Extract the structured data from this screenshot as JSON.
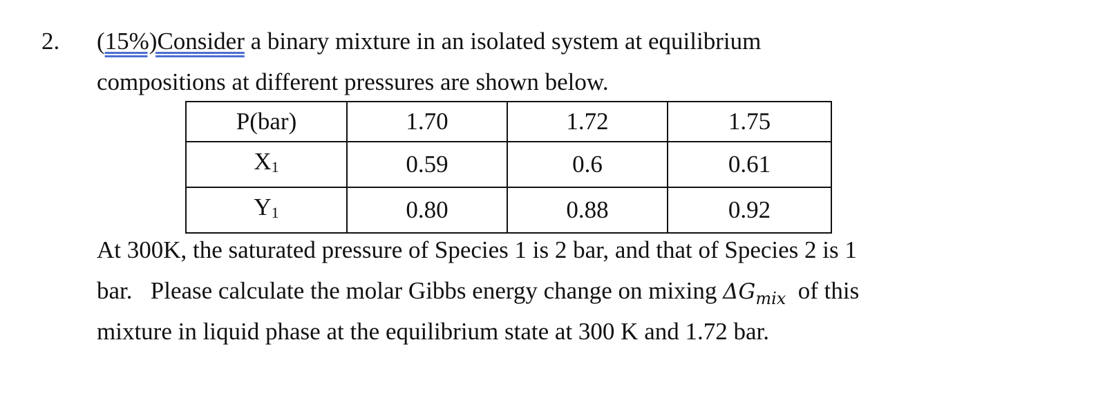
{
  "item": {
    "number": "2.",
    "question": {
      "line1": {
        "before": "(",
        "underlined": "15%)Consider",
        "after": " a binary mixture in an isolated system at equilibrium"
      },
      "line2": "compositions at different pressures are shown below."
    },
    "table": {
      "header": [
        "P(bar)",
        "1.70",
        "1.72",
        "1.75"
      ],
      "rows": [
        {
          "label": {
            "base": "X",
            "sub": "1"
          },
          "cells": [
            "0.59",
            "0.6",
            "0.61"
          ]
        },
        {
          "label": {
            "base": "Y",
            "sub": "1"
          },
          "cells": [
            "0.80",
            "0.88",
            "0.92"
          ]
        }
      ]
    },
    "after": {
      "line1": "At 300K, the saturated pressure of Species 1 is 2 bar, and that of Species 2 is 1",
      "line2": {
        "before": "bar.   Please calculate the molar Gibbs energy change on mixing ",
        "symbol": "ΔG",
        "sub": "mix",
        "after": "  of this"
      },
      "line3": "mixture in liquid phase at the equilibrium state at 300 K and 1.72 bar."
    }
  }
}
